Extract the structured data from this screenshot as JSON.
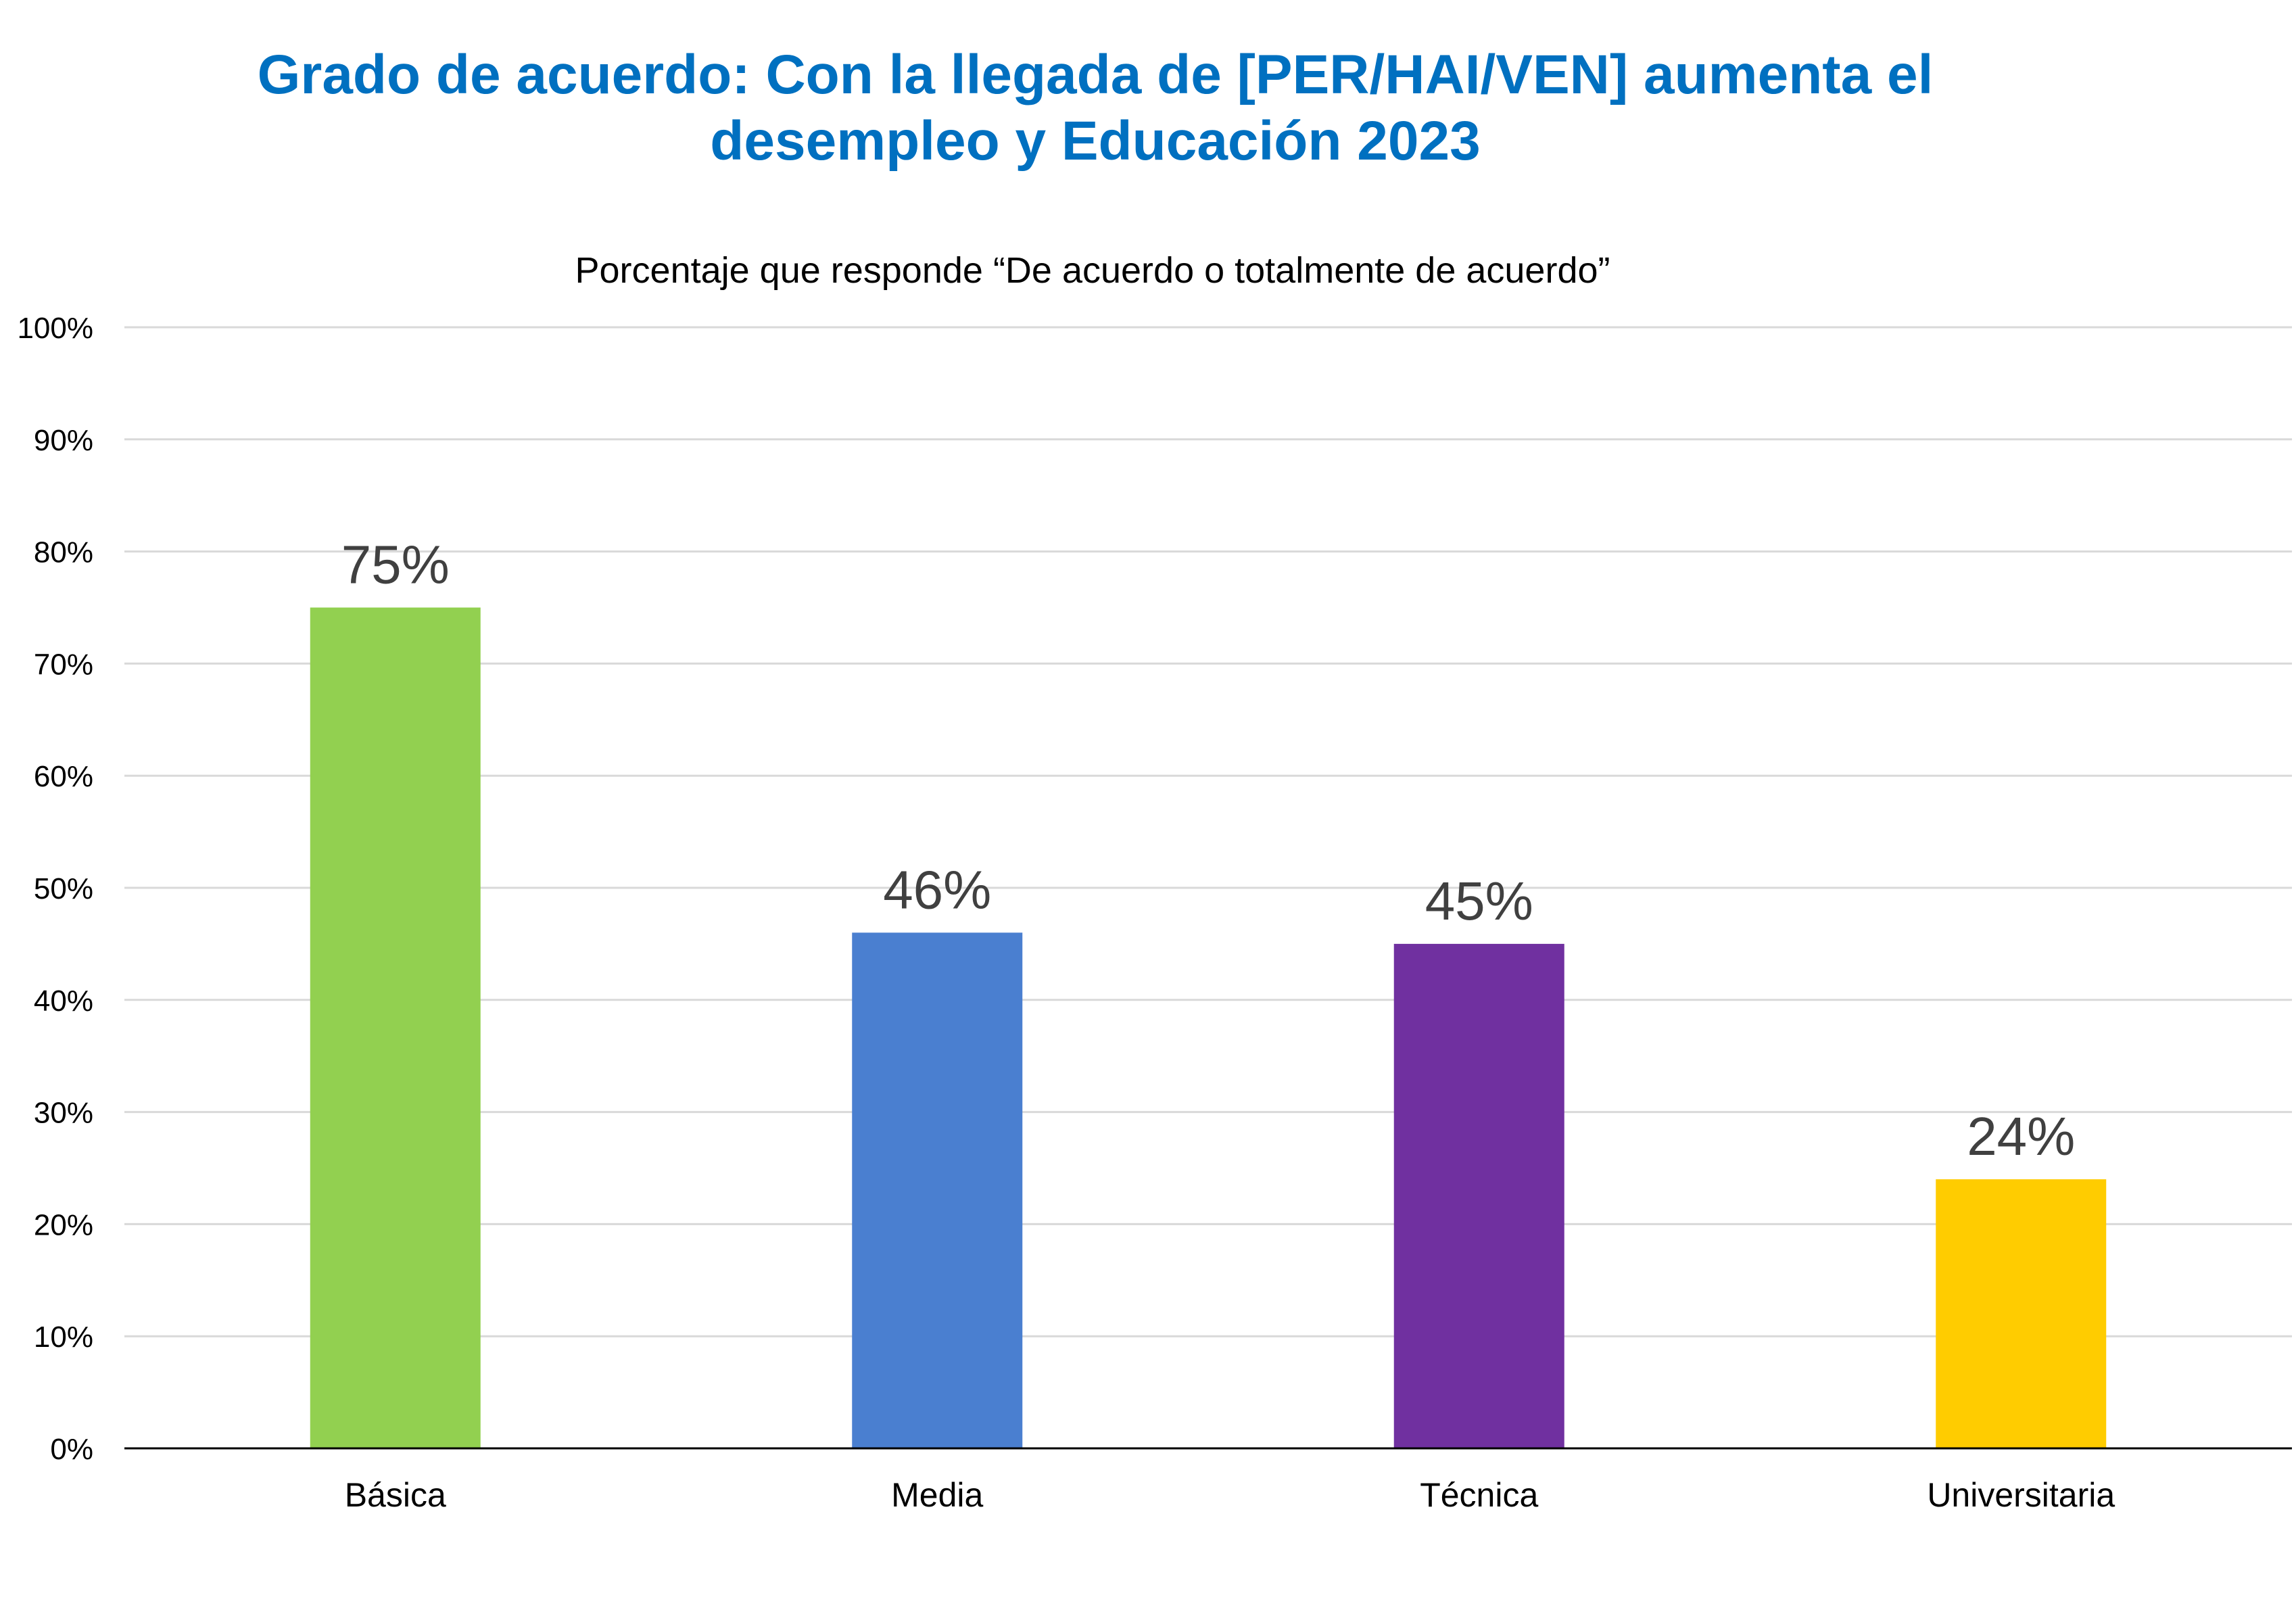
{
  "chart_data": {
    "type": "bar",
    "title_lines": [
      "Grado de acuerdo: Con la llegada de [PER/HAI/VEN] aumenta el",
      "desempleo y Educación 2023"
    ],
    "subtitle": "Porcentaje que responde “De acuerdo o totalmente de acuerdo”",
    "categories": [
      "Básica",
      "Media",
      "Técnica",
      "Universitaria"
    ],
    "values": [
      75,
      46,
      45,
      24
    ],
    "data_labels": [
      "75%",
      "46%",
      "45%",
      "24%"
    ],
    "colors": [
      "#92D050",
      "#4A7FD0",
      "#7030A0",
      "#FFCC00"
    ],
    "ylim": [
      0,
      100
    ],
    "yticks": [
      0,
      10,
      20,
      30,
      40,
      50,
      60,
      70,
      80,
      90,
      100
    ],
    "ytick_labels": [
      "0%",
      "10%",
      "20%",
      "30%",
      "40%",
      "50%",
      "60%",
      "70%",
      "80%",
      "90%",
      "100%"
    ],
    "grid": true,
    "legend": "none",
    "gridline_color": "#D9D9D9",
    "axis_color": "#000000",
    "title_color": "#0070C0"
  }
}
